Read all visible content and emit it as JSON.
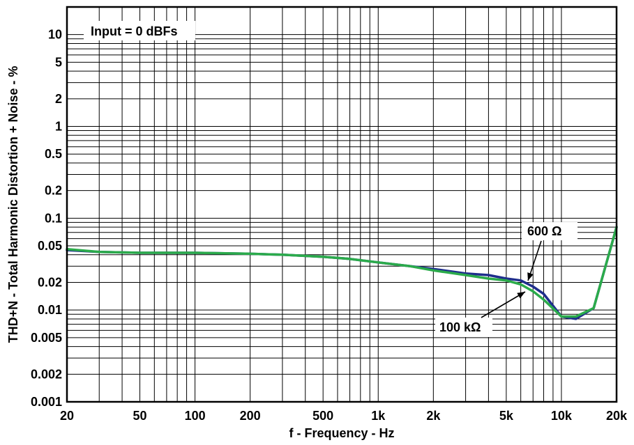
{
  "chart_data": {
    "type": "line",
    "xscale": "log",
    "yscale": "log",
    "xlim": [
      20,
      20000
    ],
    "ylim": [
      0.001,
      20
    ],
    "grid": true,
    "xlabel": "f - Frequency - Hz",
    "ylabel": "THD+N - Total Harmonic Distortion + Noise - %",
    "x_tick_labels": [
      "20",
      "50",
      "100",
      "200",
      "500",
      "1k",
      "2k",
      "5k",
      "10k",
      "20k"
    ],
    "y_tick_labels": [
      "10",
      "5",
      "2",
      "1",
      "0.5",
      "0.2",
      "0.1",
      "0.05",
      "0.02",
      "0.01",
      "0.005",
      "0.002",
      "0.001"
    ],
    "annotations": [
      {
        "text": "Input = 0 dBFs"
      },
      {
        "text": "600 Ω"
      },
      {
        "text": "100 kΩ"
      }
    ],
    "series": [
      {
        "name": "600 Ω",
        "color": "#1f2e8c",
        "x": [
          20,
          30,
          50,
          100,
          200,
          300,
          500,
          700,
          1000,
          1500,
          2000,
          3000,
          4000,
          5000,
          6000,
          7000,
          8000,
          10000,
          12000,
          15000,
          20000
        ],
        "y": [
          0.045,
          0.043,
          0.042,
          0.042,
          0.041,
          0.04,
          0.038,
          0.036,
          0.033,
          0.03,
          0.028,
          0.025,
          0.024,
          0.022,
          0.021,
          0.018,
          0.015,
          0.0085,
          0.008,
          0.0105,
          0.08
        ]
      },
      {
        "name": "100 kΩ",
        "color": "#2bab4b",
        "x": [
          20,
          30,
          50,
          100,
          200,
          300,
          500,
          700,
          1000,
          1500,
          2000,
          3000,
          4000,
          5000,
          6000,
          7000,
          8000,
          10000,
          12000,
          15000,
          20000
        ],
        "y": [
          0.046,
          0.043,
          0.042,
          0.042,
          0.041,
          0.04,
          0.038,
          0.036,
          0.033,
          0.03,
          0.027,
          0.024,
          0.022,
          0.021,
          0.019,
          0.016,
          0.013,
          0.0085,
          0.0085,
          0.0105,
          0.08
        ]
      }
    ]
  }
}
